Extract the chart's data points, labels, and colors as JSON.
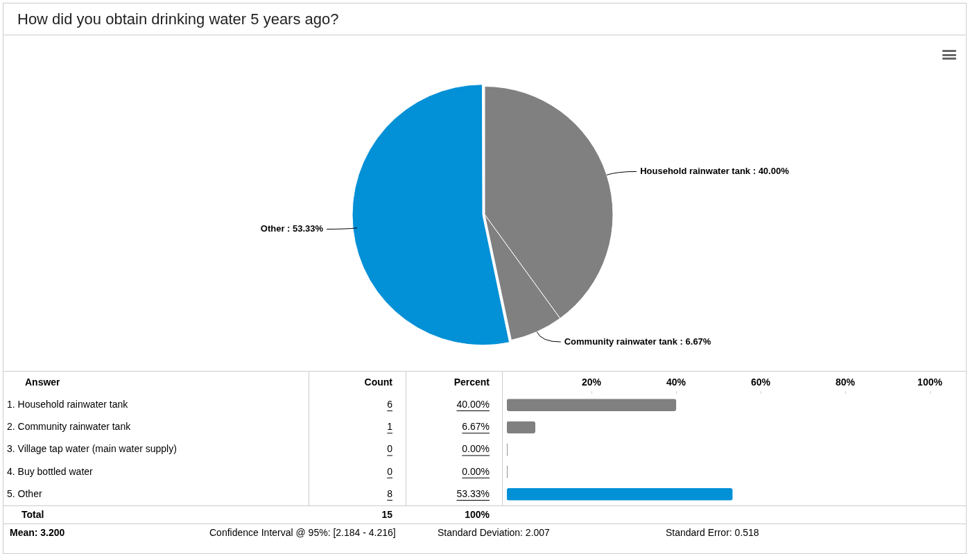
{
  "chart_data": [
    {
      "type": "pie",
      "title": "How did you obtain drinking water 5 years ago?",
      "categories": [
        "Household rainwater tank",
        "Community rainwater tank",
        "Other"
      ],
      "values": [
        40,
        6.67,
        53.33
      ],
      "colors": [
        "#808080",
        "#808080",
        "#0290d6"
      ],
      "value_labels": [
        "40.00%",
        "6.67%",
        "53.33%"
      ]
    },
    {
      "type": "bar",
      "orientation": "horizontal",
      "categories": [
        "1. Household rainwater tank",
        "2. Community rainwater tank",
        "3. Village tap water (main water supply)",
        "4. Buy bottled water",
        "5. Other"
      ],
      "values": [
        40,
        6.67,
        0,
        0,
        53.33
      ],
      "colors": [
        "#808080",
        "#808080",
        "#808080",
        "#808080",
        "#0290d6"
      ],
      "value_labels": [
        "40.00%",
        "6.67%",
        "0.00%",
        "0.00%",
        "53.33%"
      ],
      "x2lim": [
        0,
        100
      ],
      "x2ticks": [
        {
          "value": 20,
          "label": "20%"
        },
        {
          "value": 40,
          "label": "40%"
        },
        {
          "value": 60,
          "label": "60%"
        },
        {
          "value": 80,
          "label": "80%"
        },
        {
          "value": 100,
          "label": "100%"
        }
      ],
      "annotations": [
        "Answer",
        "Count",
        "Percent",
        "Total",
        "15",
        "100%",
        "Mean: 3.200",
        "Confidence Interval @ 95%: [2.184 - 4.216]",
        "Standard Deviation: 2.007",
        "Standard Error: 0.518",
        "6",
        "1",
        "0",
        "0",
        "8"
      ]
    }
  ]
}
